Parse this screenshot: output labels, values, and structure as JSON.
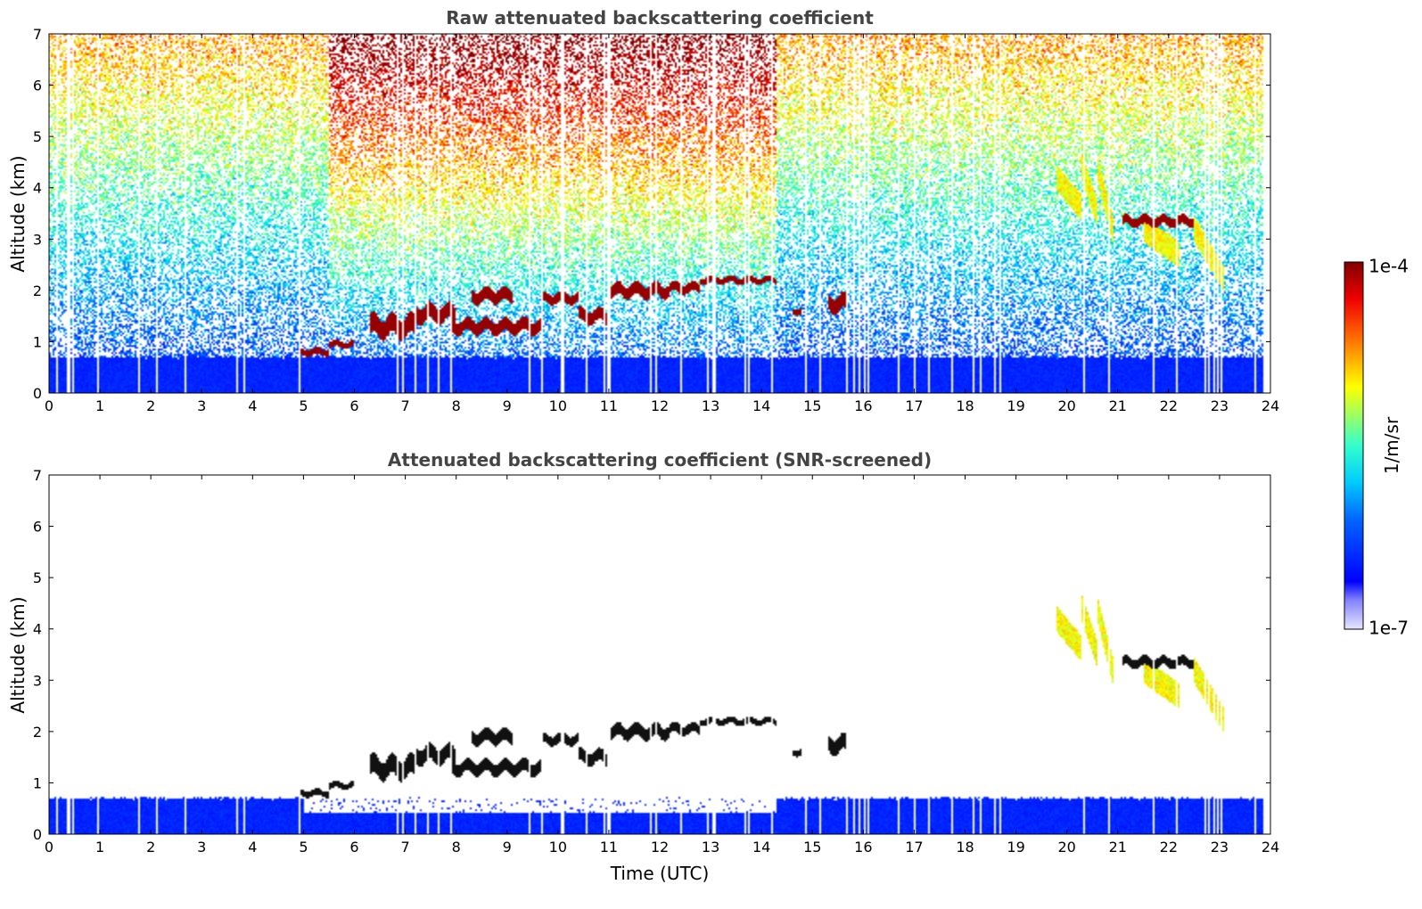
{
  "chart_data": [
    {
      "type": "heatmap",
      "title": "Raw attenuated backscattering coefficient",
      "xlabel": "",
      "ylabel": "Altitude (km)",
      "xlim": [
        0,
        24
      ],
      "ylim": [
        0,
        7
      ],
      "x_ticks": [
        "0",
        "1",
        "2",
        "3",
        "4",
        "5",
        "6",
        "7",
        "8",
        "9",
        "10",
        "11",
        "12",
        "13",
        "14",
        "15",
        "16",
        "17",
        "18",
        "19",
        "20",
        "21",
        "22",
        "23",
        "24"
      ],
      "y_ticks": [
        "0",
        "1",
        "2",
        "3",
        "4",
        "5",
        "6",
        "7"
      ],
      "noise_level": "raw",
      "boundary_layer_top_km": 0.7,
      "cloud_layers": [
        {
          "t": [
            4.9,
            5.5
          ],
          "z": [
            0.7,
            0.9
          ]
        },
        {
          "t": [
            5.5,
            6.0
          ],
          "z": [
            0.85,
            1.05
          ]
        },
        {
          "t": [
            6.3,
            7.2
          ],
          "z": [
            1.0,
            1.6
          ]
        },
        {
          "t": [
            7.2,
            8.0
          ],
          "z": [
            1.3,
            1.8
          ]
        },
        {
          "t": [
            7.9,
            9.7
          ],
          "z": [
            1.1,
            1.5
          ]
        },
        {
          "t": [
            8.3,
            9.1
          ],
          "z": [
            1.7,
            2.1
          ]
        },
        {
          "t": [
            9.7,
            10.4
          ],
          "z": [
            1.7,
            2.0
          ]
        },
        {
          "t": [
            10.4,
            11.0
          ],
          "z": [
            1.3,
            1.7
          ]
        },
        {
          "t": [
            11.0,
            12.2
          ],
          "z": [
            1.8,
            2.2
          ]
        },
        {
          "t": [
            12.2,
            12.8
          ],
          "z": [
            1.9,
            2.2
          ]
        },
        {
          "t": [
            12.8,
            14.3
          ],
          "z": [
            2.1,
            2.3
          ]
        },
        {
          "t": [
            14.6,
            14.8
          ],
          "z": [
            1.5,
            1.7
          ]
        },
        {
          "t": [
            15.3,
            15.7
          ],
          "z": [
            1.5,
            2.0
          ]
        },
        {
          "t": [
            21.1,
            22.5
          ],
          "z": [
            3.2,
            3.5
          ]
        }
      ],
      "ice_streaks": [
        {
          "t": [
            19.8,
            20.3
          ],
          "z": [
            3.6,
            4.2
          ]
        },
        {
          "t": [
            20.3,
            20.6
          ],
          "z": [
            3.5,
            4.4
          ]
        },
        {
          "t": [
            20.6,
            20.9
          ],
          "z": [
            3.2,
            4.4
          ]
        },
        {
          "t": [
            21.5,
            22.2
          ],
          "z": [
            2.7,
            3.2
          ]
        },
        {
          "t": [
            22.5,
            23.1
          ],
          "z": [
            2.2,
            3.2
          ]
        }
      ]
    },
    {
      "type": "heatmap",
      "title": "Attenuated backscattering coefficient (SNR-screened)",
      "xlabel": "Time (UTC)",
      "ylabel": "Altitude (km)",
      "xlim": [
        0,
        24
      ],
      "ylim": [
        0,
        7
      ],
      "x_ticks": [
        "0",
        "1",
        "2",
        "3",
        "4",
        "5",
        "6",
        "7",
        "8",
        "9",
        "10",
        "11",
        "12",
        "13",
        "14",
        "15",
        "16",
        "17",
        "18",
        "19",
        "20",
        "21",
        "22",
        "23",
        "24"
      ],
      "y_ticks": [
        "0",
        "1",
        "2",
        "3",
        "4",
        "5",
        "6",
        "7"
      ],
      "noise_level": "screened",
      "boundary_layer_top_km": 0.7,
      "data_end_hour": 23.85
    }
  ],
  "colorbar": {
    "label": "1/m/sr",
    "min_label": "1e-7",
    "max_label": "1e-4",
    "colormap": "jet",
    "scale": "log"
  },
  "colors": {
    "bl_blue": "#1133ee",
    "cloud_red": "#aa0000",
    "cloud_black": "#111111",
    "ice_yellow": "#eedd00",
    "ice_green": "#88ee44"
  }
}
